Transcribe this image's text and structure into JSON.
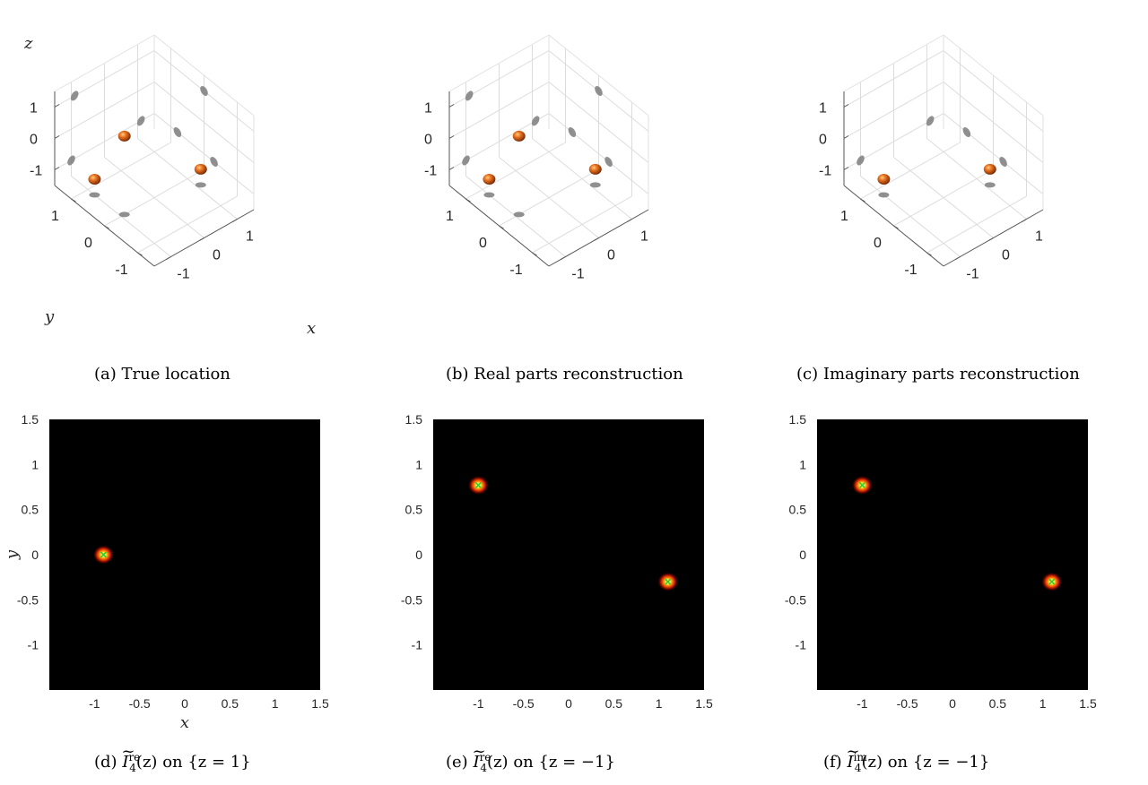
{
  "figure": {
    "panels": [
      {
        "id": "a",
        "caption": "(a) True location"
      },
      {
        "id": "b",
        "caption": "(b) Real parts reconstruction"
      },
      {
        "id": "c",
        "caption": "(c) Imaginary parts reconstruction"
      },
      {
        "id": "d",
        "caption_prefix": "(d)",
        "caption_func": "I",
        "caption_sup": "re",
        "caption_sub": "4",
        "caption_arg": "(z)",
        "caption_suffix": "on {z = 1}"
      },
      {
        "id": "e",
        "caption_prefix": "(e)",
        "caption_func": "I",
        "caption_sup": "re",
        "caption_sub": "4",
        "caption_arg": "(z)",
        "caption_suffix": "on {z = −1}"
      },
      {
        "id": "f",
        "caption_prefix": "(f)",
        "caption_func": "I",
        "caption_sup": "im",
        "caption_sub": "4",
        "caption_arg": "(z)",
        "caption_suffix": "on {z = −1}"
      }
    ]
  },
  "chart_data": [
    {
      "type": "scatter3d",
      "panel": "a",
      "xlabel": "x",
      "ylabel": "y",
      "zlabel": "z",
      "xticks": [
        "-1",
        "0",
        "1"
      ],
      "yticks": [
        "-1",
        "0",
        "1"
      ],
      "zticks": [
        "-1",
        "0",
        "1"
      ],
      "points": [
        [
          -1.0,
          0.8,
          -1.0
        ],
        [
          1.1,
          -0.3,
          -1.0
        ],
        [
          -0.9,
          0.0,
          1.0
        ]
      ],
      "point_color": "#e4601a",
      "shadow_color": "#7d7d7d"
    },
    {
      "type": "scatter3d",
      "panel": "b",
      "xticks": [
        "-1",
        "0",
        "1"
      ],
      "yticks": [
        "-1",
        "0",
        "1"
      ],
      "zticks": [
        "-1",
        "0",
        "1"
      ],
      "points": [
        [
          -1.0,
          0.8,
          -1.0
        ],
        [
          1.1,
          -0.3,
          -1.0
        ],
        [
          -0.9,
          0.0,
          1.0
        ]
      ],
      "point_color": "#e4601a",
      "shadow_color": "#7d7d7d"
    },
    {
      "type": "scatter3d",
      "panel": "c",
      "xticks": [
        "-1",
        "0",
        "1"
      ],
      "yticks": [
        "-1",
        "0",
        "1"
      ],
      "zticks": [
        "-1",
        "0",
        "1"
      ],
      "points": [
        [
          -1.0,
          0.8,
          -1.0
        ],
        [
          1.1,
          -0.3,
          -1.0
        ]
      ],
      "point_color": "#e4601a",
      "shadow_color": "#7d7d7d"
    },
    {
      "type": "heatmap",
      "panel": "d",
      "xlabel": "x",
      "ylabel": "y",
      "xlim": [
        -1.5,
        1.5
      ],
      "ylim": [
        -1.5,
        1.5
      ],
      "xticks": [
        "-1",
        "-0.5",
        "0",
        "0.5",
        "1",
        "1.5"
      ],
      "yticks": [
        "-1",
        "-0.5",
        "0",
        "0.5",
        "1",
        "1.5"
      ],
      "peaks": [
        [
          -0.9,
          0.0
        ]
      ],
      "background": "#000000"
    },
    {
      "type": "heatmap",
      "panel": "e",
      "xlim": [
        -1.5,
        1.5
      ],
      "ylim": [
        -1.5,
        1.5
      ],
      "xticks": [
        "-1",
        "-0.5",
        "0",
        "0.5",
        "1",
        "1.5"
      ],
      "yticks": [
        "-1",
        "-0.5",
        "0",
        "0.5",
        "1",
        "1.5"
      ],
      "peaks": [
        [
          -1.0,
          0.77
        ],
        [
          1.1,
          -0.3
        ]
      ],
      "background": "#000000"
    },
    {
      "type": "heatmap",
      "panel": "f",
      "xlim": [
        -1.5,
        1.5
      ],
      "ylim": [
        -1.5,
        1.5
      ],
      "xticks": [
        "-1",
        "-0.5",
        "0",
        "0.5",
        "1",
        "1.5"
      ],
      "yticks": [
        "-1",
        "-0.5",
        "0",
        "0.5",
        "1",
        "1.5"
      ],
      "peaks": [
        [
          -1.0,
          0.77
        ],
        [
          1.1,
          -0.3
        ]
      ],
      "background": "#000000"
    }
  ]
}
